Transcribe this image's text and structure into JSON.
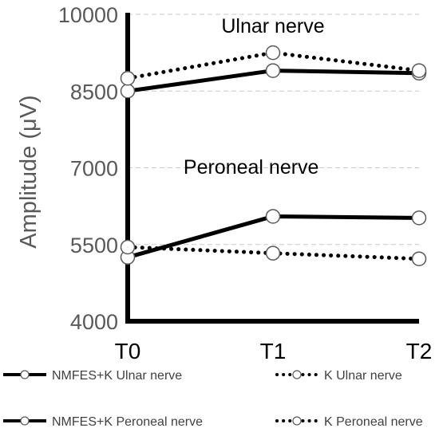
{
  "chart_data": {
    "type": "line",
    "title": "",
    "xlabel": "",
    "ylabel": "Amplitude (μV)",
    "categories": [
      "T0",
      "T1",
      "T2"
    ],
    "ylim": [
      4000,
      10000
    ],
    "yticks": [
      4000,
      5500,
      7000,
      8500,
      10000
    ],
    "grid": true,
    "legend_position": "bottom",
    "series": [
      {
        "name": "NMFES+K Ulnar nerve",
        "values": [
          8500,
          8900,
          8850
        ],
        "color": "#000000",
        "style": "solid"
      },
      {
        "name": "K Ulnar nerve",
        "values": [
          8750,
          9250,
          8900
        ],
        "color": "#000000",
        "style": "dotted"
      },
      {
        "name": "NMFES+K Peroneal nerve",
        "values": [
          5250,
          6050,
          6020
        ],
        "color": "#000000",
        "style": "solid"
      },
      {
        "name": "K Peroneal nerve",
        "values": [
          5450,
          5330,
          5220
        ],
        "color": "#000000",
        "style": "dotted"
      }
    ],
    "annotations": [
      {
        "text": "Ulnar nerve",
        "x": 1,
        "y": 9780
      },
      {
        "text": "Peroneal nerve",
        "x": 0.85,
        "y": 7020
      }
    ]
  }
}
